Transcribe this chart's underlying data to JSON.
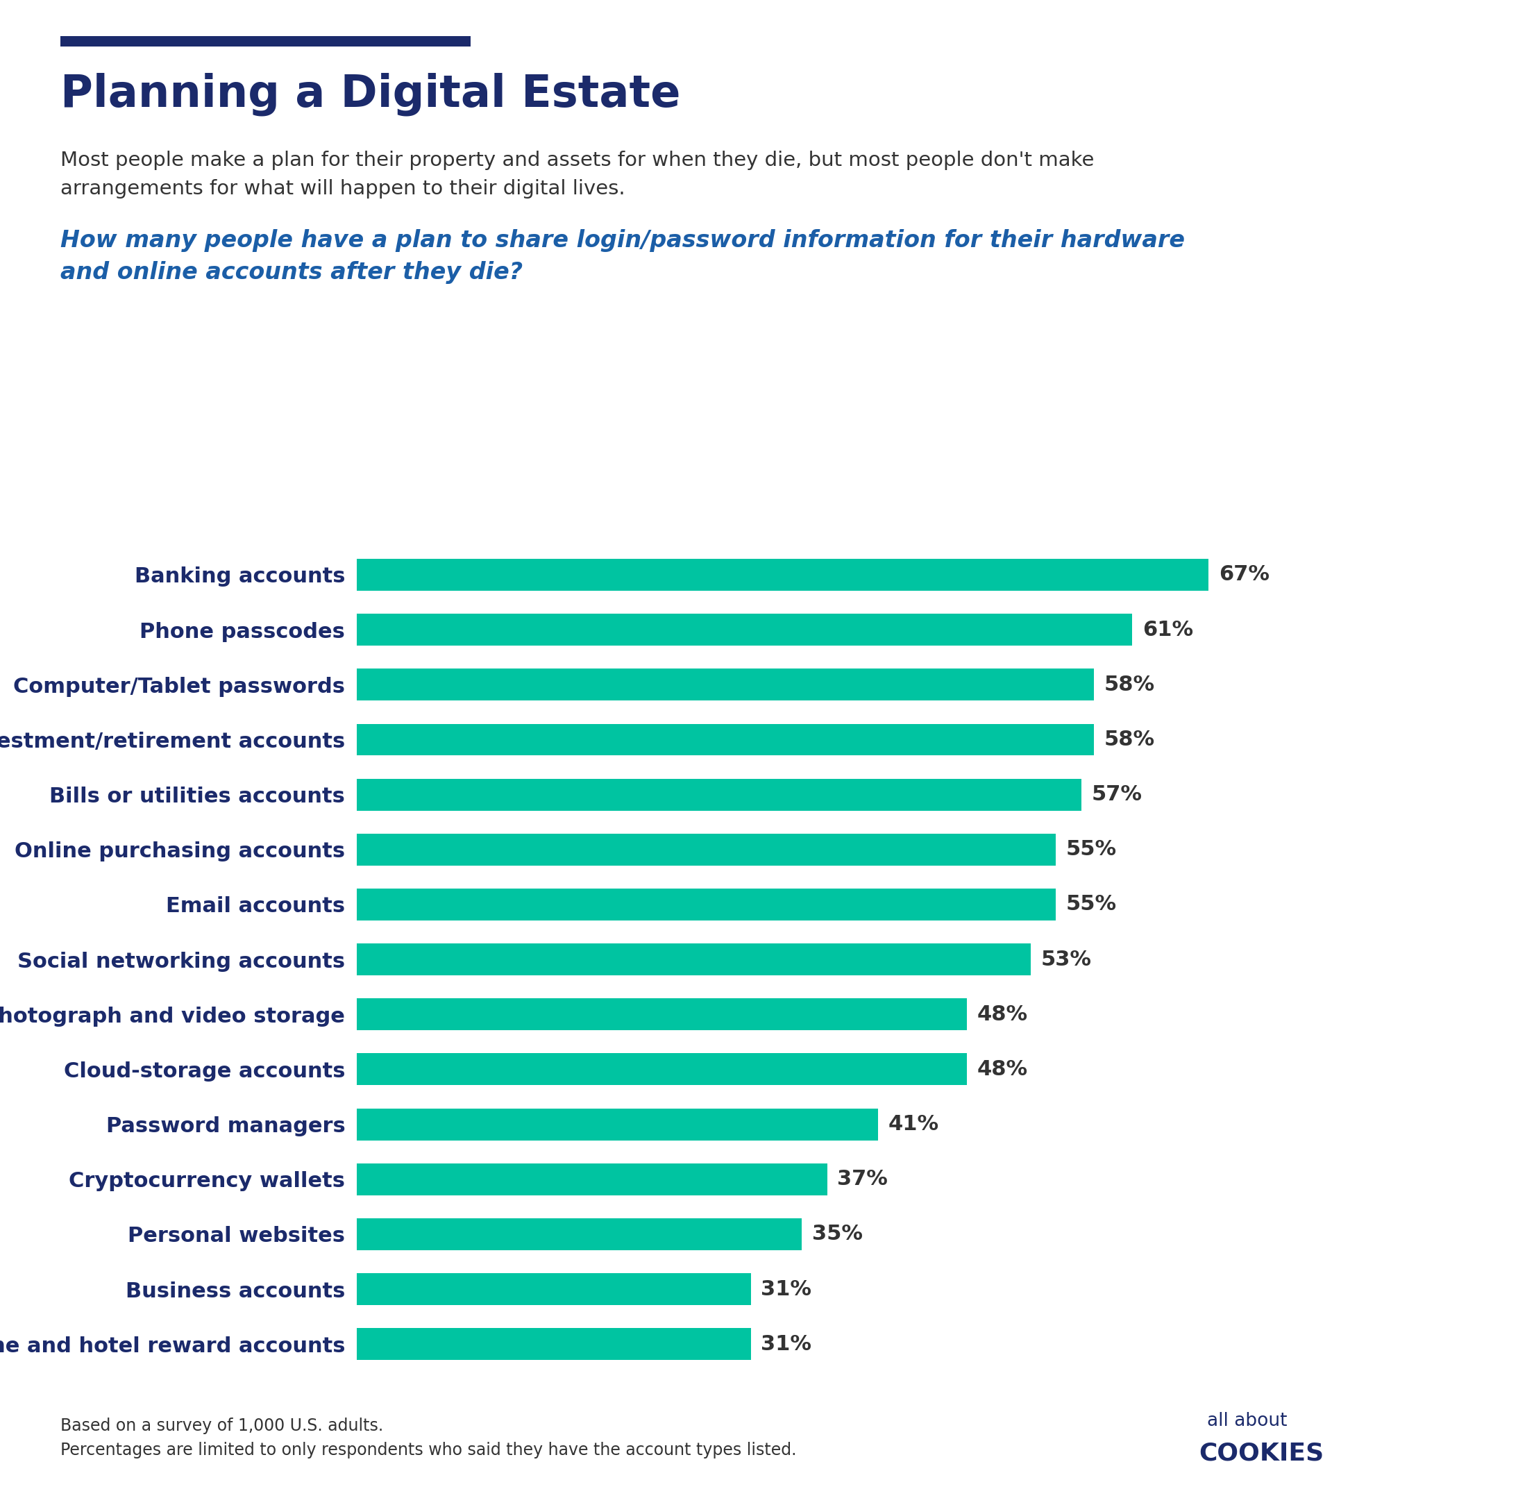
{
  "title": "Planning a Digital Estate",
  "subtitle": "Most people make a plan for their property and assets for when they die, but most people don't make\narrangements for what will happen to their digital lives.",
  "question": "How many people have a plan to share login/password information for their hardware\nand online accounts after they die?",
  "categories": [
    "Banking accounts",
    "Phone passcodes",
    "Computer/Tablet passwords",
    "Investment/retirement accounts",
    "Bills or utilities accounts",
    "Online purchasing accounts",
    "Email accounts",
    "Social networking accounts",
    "Photograph and video storage",
    "Cloud-storage accounts",
    "Password managers",
    "Cryptocurrency wallets",
    "Personal websites",
    "Business accounts",
    "Airline and hotel reward accounts"
  ],
  "values": [
    67,
    61,
    58,
    58,
    57,
    55,
    55,
    53,
    48,
    48,
    41,
    37,
    35,
    31,
    31
  ],
  "bar_color": "#00C4A1",
  "title_color": "#1B2A6B",
  "subtitle_color": "#333333",
  "question_color": "#1B5EA7",
  "label_color": "#1B2A6B",
  "value_color": "#333333",
  "footnote_color": "#333333",
  "accent_line_color": "#1B2A6B",
  "background_color": "#FFFFFF",
  "title_fontsize": 46,
  "subtitle_fontsize": 21,
  "question_fontsize": 24,
  "label_fontsize": 22,
  "value_fontsize": 22,
  "footnote_fontsize": 17,
  "footnote_line1": "Based on a survey of 1,000 U.S. adults.",
  "footnote_line2": "Percentages are limited to only respondents who said they have the account types listed.",
  "xlim": [
    0,
    80
  ]
}
